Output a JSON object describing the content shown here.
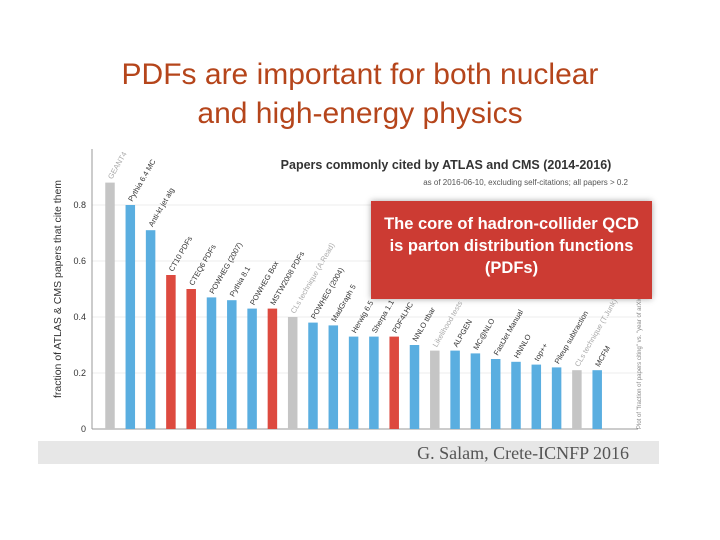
{
  "slide": {
    "title_line1": "PDFs are important for both nuclear",
    "title_line2": "and high-energy physics"
  },
  "callout": {
    "text": "The core of hadron-collider QCD is parton distribution functions (PDFs)",
    "color": "#cc3b33"
  },
  "credit": "G. Salam, Crete-ICNFP 2016",
  "colors": {
    "blue": "#5aaee0",
    "grey": "#c5c5c5",
    "red": "#dd4a3f",
    "title": "#b5451b"
  },
  "chart_data": {
    "type": "bar",
    "title": "Papers commonly cited by ATLAS and CMS (2014-2016)",
    "subtitle": "as of 2016-06-10, excluding self-citations; all papers > 0.2",
    "ylabel": "fraction of ATLAS & CMS papers that cite them",
    "ylim": [
      0,
      1
    ],
    "yticks": [
      "0",
      "0.2",
      "0.4",
      "0.6",
      "0.8"
    ],
    "side_note": "Plot of \"fraction of papers citing\" vs. \"year of arXiv\" (not shown)",
    "bars": [
      {
        "label": "GEANT4",
        "value": 0.88,
        "group": "grey"
      },
      {
        "label": "Pythia 6.4 MC",
        "value": 0.8,
        "group": "blue"
      },
      {
        "label": "Anti-kt jet alg",
        "value": 0.71,
        "group": "blue"
      },
      {
        "label": "CT10 PDFs",
        "value": 0.55,
        "group": "red"
      },
      {
        "label": "CTEQ6 PDFs",
        "value": 0.5,
        "group": "red"
      },
      {
        "label": "POWHEG (2007)",
        "value": 0.47,
        "group": "blue"
      },
      {
        "label": "Pythia 8.1",
        "value": 0.46,
        "group": "blue"
      },
      {
        "label": "POWHEG Box",
        "value": 0.43,
        "group": "blue"
      },
      {
        "label": "MSTW2008 PDFs",
        "value": 0.43,
        "group": "red"
      },
      {
        "label": "CLs technique (A.Read)",
        "value": 0.4,
        "group": "grey"
      },
      {
        "label": "POWHEG (2004)",
        "value": 0.38,
        "group": "blue"
      },
      {
        "label": "MadGraph 5",
        "value": 0.37,
        "group": "blue"
      },
      {
        "label": "Herwig 6.5",
        "value": 0.33,
        "group": "blue"
      },
      {
        "label": "Sherpa 1.1",
        "value": 0.33,
        "group": "blue"
      },
      {
        "label": "PDF4LHC",
        "value": 0.33,
        "group": "red"
      },
      {
        "label": "NNLO ttbar",
        "value": 0.3,
        "group": "blue"
      },
      {
        "label": "Likelihood tests",
        "value": 0.28,
        "group": "grey"
      },
      {
        "label": "ALPGEN",
        "value": 0.28,
        "group": "blue"
      },
      {
        "label": "MC@NLO",
        "value": 0.27,
        "group": "blue"
      },
      {
        "label": "FastJet Manual",
        "value": 0.25,
        "group": "blue"
      },
      {
        "label": "HNNLO",
        "value": 0.24,
        "group": "blue"
      },
      {
        "label": "top++",
        "value": 0.23,
        "group": "blue"
      },
      {
        "label": "Pileup subtraction",
        "value": 0.22,
        "group": "blue"
      },
      {
        "label": "CLs technique (T.Junk)",
        "value": 0.21,
        "group": "grey"
      },
      {
        "label": "MCFM",
        "value": 0.21,
        "group": "blue"
      }
    ]
  }
}
